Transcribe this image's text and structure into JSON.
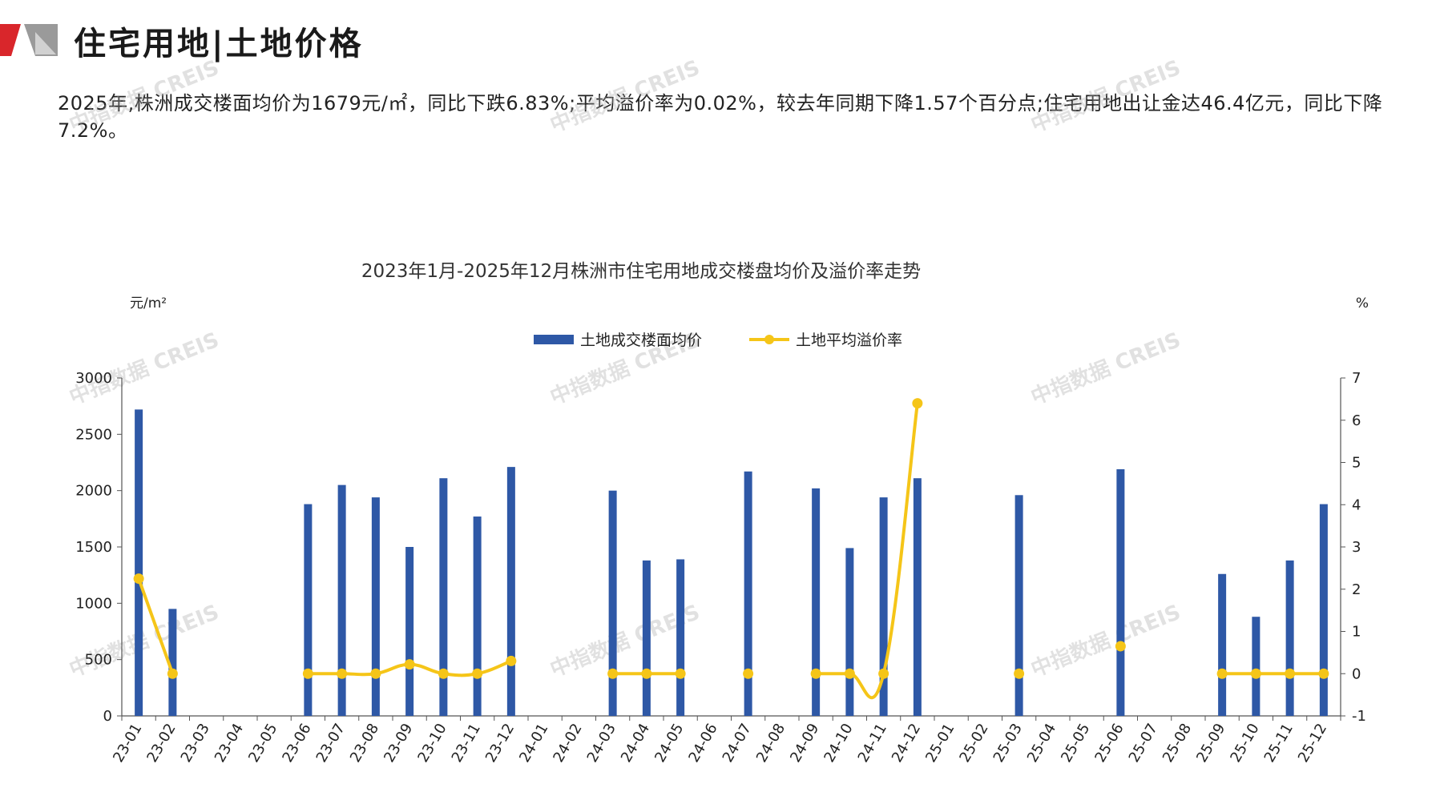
{
  "header": {
    "title": "住宅用地|土地价格"
  },
  "summary": {
    "text": "2025年,株洲成交楼面均价为1679元/㎡，同比下跌6.83%;平均溢价率为0.02%，较去年同期下降1.57个百分点;住宅用地出让金达46.4亿元，同比下降7.2%。"
  },
  "watermark_text": "中指数据 CREIS",
  "colors": {
    "bar": "#2E58A6",
    "line": "#F5C518",
    "logo_red": "#D9262B",
    "logo_gray": "#9A9A9A"
  },
  "chart_data": {
    "type": "bar",
    "title": "2023年1月-2025年12月株洲市住宅用地成交楼盘均价及溢价率走势",
    "ylabel_left": "元/m²",
    "ylabel_right": "%",
    "ylim_left": [
      0,
      3000
    ],
    "ylim_right": [
      -1,
      7
    ],
    "yticks_left": [
      "0",
      "500",
      "1000",
      "1500",
      "2000",
      "2500",
      "3000"
    ],
    "yticks_right": [
      "-1",
      "0",
      "1",
      "2",
      "3",
      "4",
      "5",
      "6",
      "7"
    ],
    "legend_position": "top-center",
    "categories": [
      "23-01",
      "23-02",
      "23-03",
      "23-04",
      "23-05",
      "23-06",
      "23-07",
      "23-08",
      "23-09",
      "23-10",
      "23-11",
      "23-12",
      "24-01",
      "24-02",
      "24-03",
      "24-04",
      "24-05",
      "24-06",
      "24-07",
      "24-08",
      "24-09",
      "24-10",
      "24-11",
      "24-12",
      "25-01",
      "25-02",
      "25-03",
      "25-04",
      "25-05",
      "25-06",
      "25-07",
      "25-08",
      "25-09",
      "25-10",
      "25-11",
      "25-12"
    ],
    "series": [
      {
        "name": "土地成交楼面均价",
        "type": "bar",
        "axis": "left",
        "values": [
          2720,
          950,
          null,
          null,
          null,
          1880,
          2050,
          1940,
          1500,
          2110,
          1770,
          2210,
          null,
          null,
          2000,
          1380,
          1390,
          null,
          2170,
          null,
          2020,
          1490,
          1940,
          2110,
          null,
          null,
          1960,
          null,
          null,
          2190,
          null,
          null,
          1260,
          880,
          1380,
          1880
        ]
      },
      {
        "name": "土地平均溢价率",
        "type": "line",
        "axis": "right",
        "values": [
          2.25,
          0.0,
          null,
          null,
          null,
          0.0,
          0.0,
          0.0,
          0.22,
          0.0,
          0.0,
          0.3,
          null,
          null,
          0.0,
          0.0,
          0.0,
          null,
          0.0,
          null,
          0.0,
          0.0,
          0.0,
          6.4,
          null,
          null,
          0.0,
          null,
          null,
          0.65,
          null,
          null,
          0.0,
          0.0,
          0.0,
          0.0
        ]
      }
    ]
  }
}
